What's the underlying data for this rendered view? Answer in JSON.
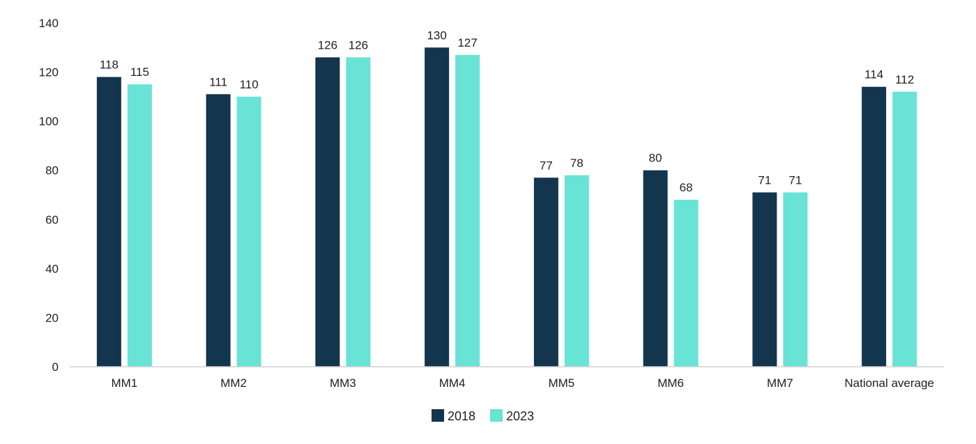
{
  "chart_data": {
    "type": "bar",
    "title": "",
    "xlabel": "",
    "ylabel": "",
    "categories": [
      "MM1",
      "MM2",
      "MM3",
      "MM4",
      "MM5",
      "MM6",
      "MM7",
      "National average"
    ],
    "series": [
      {
        "name": "2018",
        "color": "#13354d",
        "values": [
          118,
          111,
          126,
          130,
          77,
          80,
          71,
          114
        ],
        "labels": [
          "118",
          "111",
          "126",
          "130",
          "77",
          "80",
          "71",
          "114"
        ]
      },
      {
        "name": "2023",
        "color": "#69e3d6",
        "values": [
          115,
          110,
          126,
          127,
          78,
          68,
          71,
          112
        ],
        "labels": [
          "115",
          "110",
          "126",
          "127",
          "78",
          "68",
          "71",
          "112"
        ]
      }
    ],
    "ylim": [
      0,
      140
    ],
    "yticks": [
      0,
      20,
      40,
      60,
      80,
      100,
      120,
      140
    ],
    "grid": false,
    "legend_position": "bottom-center"
  }
}
